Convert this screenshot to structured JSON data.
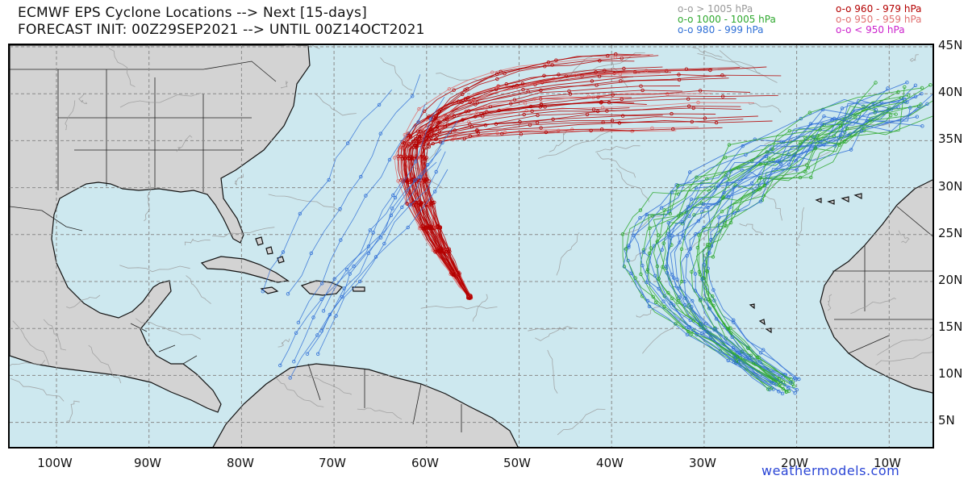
{
  "header": {
    "title_line1": "ECMWF EPS Cyclone Locations --> Next [15-days]",
    "title_line2": "FORECAST INIT: 00Z29SEP2021 --> UNTIL 00Z14OCT2021"
  },
  "legend": [
    {
      "symbol": "o-o",
      "label": "> 1005 hPa",
      "color": "#999999"
    },
    {
      "symbol": "o-o",
      "label": "1000 - 1005 hPa",
      "color": "#2ea82e"
    },
    {
      "symbol": "o-o",
      "label": "980 - 999 hPa",
      "color": "#2f6fd6"
    },
    {
      "symbol": "o-o",
      "label": "960 - 979 hPa",
      "color": "#b40000"
    },
    {
      "symbol": "o-o",
      "label": "950 - 959 hPa",
      "color": "#e07070"
    },
    {
      "symbol": "o-o",
      "label": "< 950 hPa",
      "color": "#cc22cc"
    }
  ],
  "axes": {
    "lon_labels": [
      "100W",
      "90W",
      "80W",
      "70W",
      "60W",
      "50W",
      "40W",
      "30W",
      "20W",
      "10W"
    ],
    "lat_labels": [
      "45N",
      "40N",
      "35N",
      "30N",
      "25N",
      "20N",
      "15N",
      "10N",
      "5N"
    ],
    "lon_range": [
      -105,
      -5
    ],
    "lat_range": [
      2,
      45
    ]
  },
  "colors": {
    "ocean": "#cde8ef",
    "land": "#d3d3d3",
    "grid": "#888888"
  },
  "watermark": "weathermodels.com"
}
